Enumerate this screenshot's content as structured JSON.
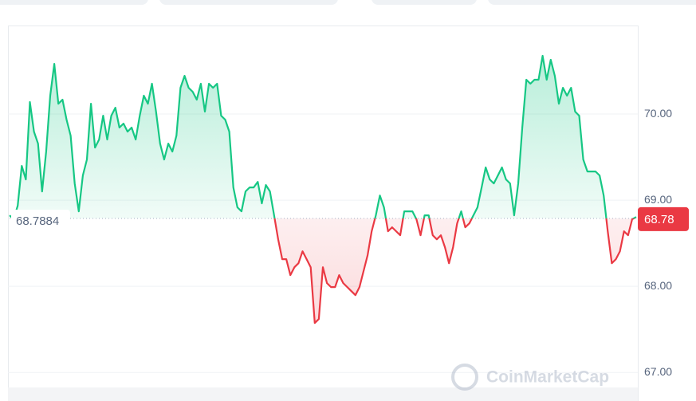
{
  "chart_data": {
    "type": "line",
    "watermark": "CoinMarketCap",
    "values": [
      68.824,
      68.778,
      68.935,
      69.398,
      69.241,
      70.139,
      69.796,
      69.657,
      69.102,
      69.565,
      70.213,
      70.583,
      70.12,
      70.167,
      69.935,
      69.75,
      69.194,
      68.87,
      69.287,
      69.472,
      70.12,
      69.611,
      69.704,
      69.981,
      69.704,
      69.981,
      70.074,
      69.843,
      69.889,
      69.796,
      69.843,
      69.704,
      69.981,
      70.213,
      70.12,
      70.352,
      70.028,
      69.657,
      69.472,
      69.657,
      69.565,
      69.75,
      70.305,
      70.444,
      70.305,
      70.259,
      70.167,
      70.352,
      70.028,
      70.352,
      70.305,
      70.352,
      69.981,
      69.935,
      69.796,
      69.148,
      68.917,
      68.87,
      69.102,
      69.148,
      69.148,
      69.213,
      68.963,
      69.176,
      69.102,
      68.824,
      68.546,
      68.315,
      68.315,
      68.13,
      68.222,
      68.268,
      68.407,
      68.315,
      68.222,
      67.574,
      67.62,
      68.222,
      68.037,
      67.991,
      67.991,
      68.13,
      68.037,
      67.991,
      67.944,
      67.898,
      67.991,
      68.176,
      68.361,
      68.639,
      68.824,
      69.055,
      68.917,
      68.639,
      68.685,
      68.639,
      68.593,
      68.87,
      68.87,
      68.87,
      68.778,
      68.593,
      68.824,
      68.824,
      68.593,
      68.546,
      68.593,
      68.454,
      68.268,
      68.454,
      68.731,
      68.87,
      68.685,
      68.731,
      68.824,
      68.917,
      69.148,
      69.38,
      69.241,
      69.194,
      69.287,
      69.38,
      69.241,
      69.194,
      68.824,
      69.194,
      69.843,
      70.398,
      70.352,
      70.398,
      70.398,
      70.676,
      70.398,
      70.63,
      70.444,
      70.12,
      70.305,
      70.213,
      70.305,
      70.028,
      69.981,
      69.472,
      69.333,
      69.333,
      69.333,
      69.287,
      69.055,
      68.639,
      68.268,
      68.315,
      68.407,
      68.639,
      68.593,
      68.778,
      68.805
    ],
    "reference": 68.7884,
    "current_price": 68.78,
    "up_color": "#16c784",
    "down_color": "#ea3943",
    "ylim": [
      66.9,
      71.0
    ],
    "yticks": [
      {
        "value": 67,
        "label": "67.00"
      },
      {
        "value": 68,
        "label": "68.00"
      },
      {
        "value": 69,
        "label": "69.00"
      },
      {
        "value": 70,
        "label": "70.00"
      }
    ],
    "grid": true
  }
}
